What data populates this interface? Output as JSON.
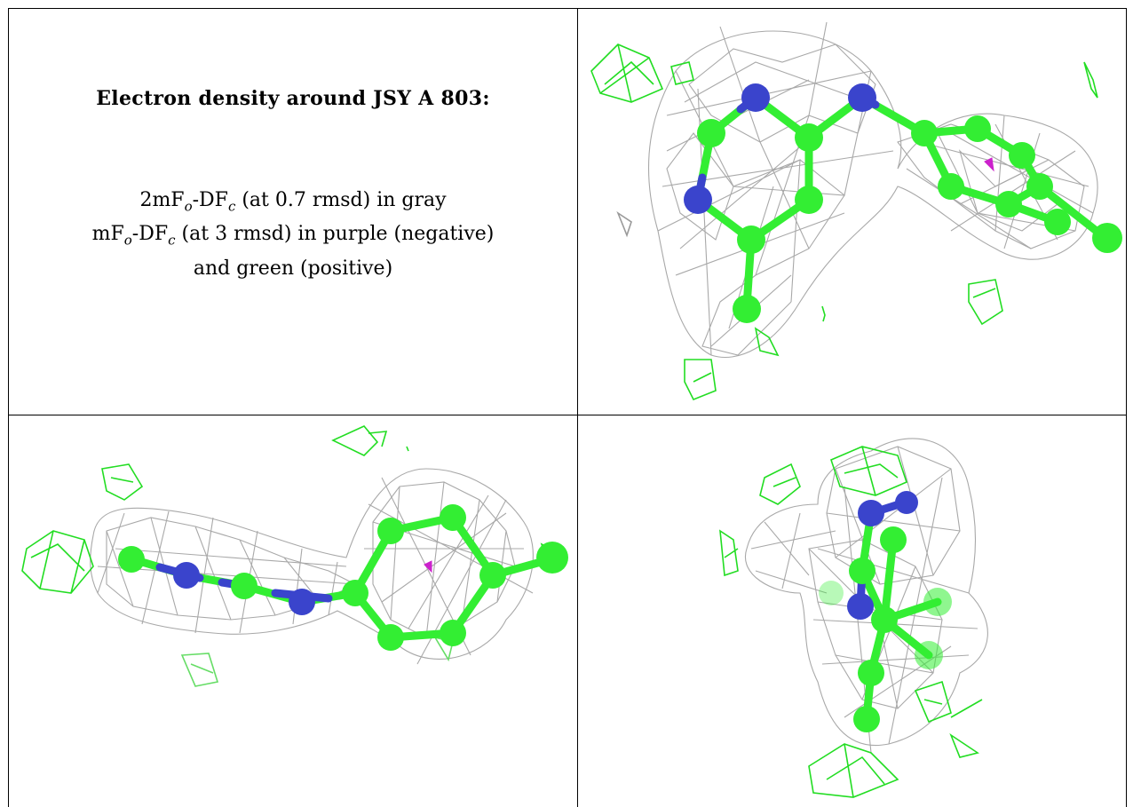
{
  "caption": {
    "title": "Electron density around JSY A 803:",
    "line1": {
      "a": "2mF",
      "a_sub": "o",
      "b": "-DF",
      "b_sub": "c",
      "c": " (at 0.7 rmsd) in gray"
    },
    "line2": {
      "a": "mF",
      "a_sub": "o",
      "b": "-DF",
      "b_sub": "c",
      "c": " (at 3 rmsd) in purple (negative)"
    },
    "line3": "and green (positive)"
  },
  "colors": {
    "mesh_2fofc": "#9a9a9a",
    "mesh_positive": "#22dd22",
    "mesh_negative": "#cc22cc",
    "carbon": "#33ee33",
    "nitrogen": "#3a44cc",
    "border": "#000000"
  },
  "panels": [
    "view-top-right",
    "view-bottom-left",
    "view-bottom-right"
  ]
}
